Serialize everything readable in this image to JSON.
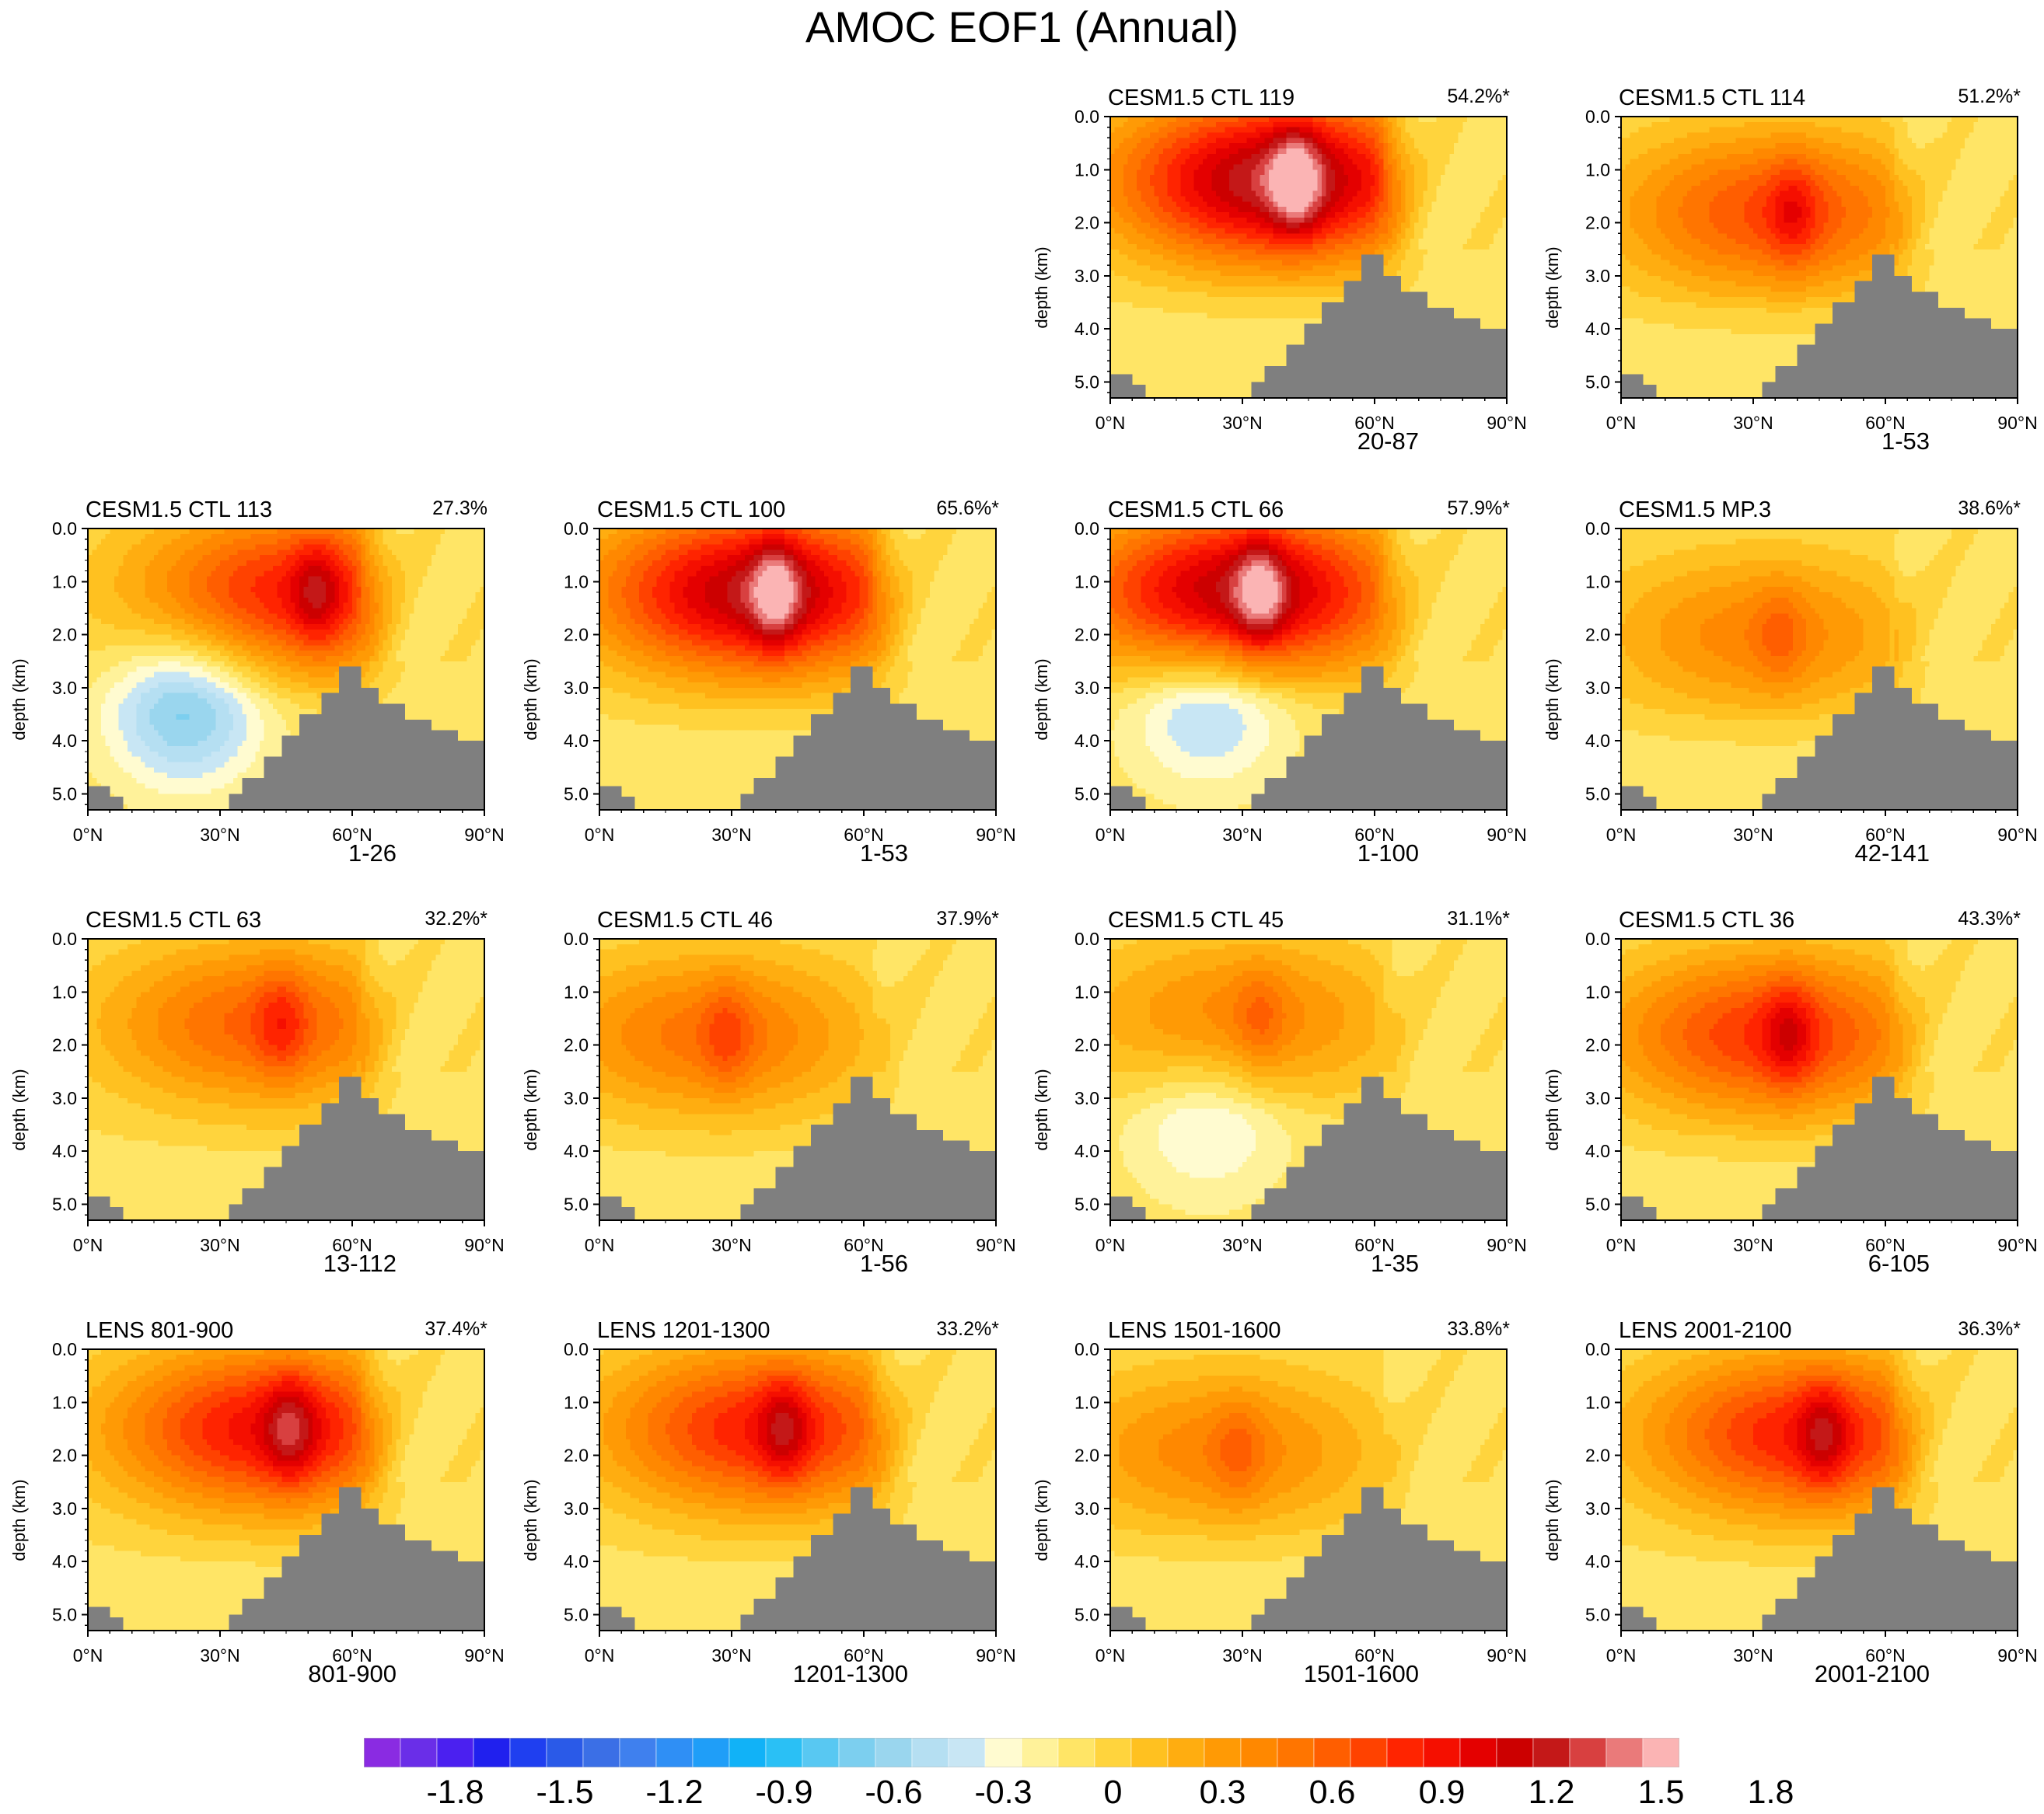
{
  "title": "AMOC EOF1 (Annual)",
  "chart_data": {
    "type": "contour",
    "shared_axes": {
      "ylabel": "depth (km)",
      "ylim": [
        0.0,
        5.3
      ],
      "yticks": [
        "0.0",
        "1.0",
        "2.0",
        "3.0",
        "4.0",
        "5.0"
      ],
      "xlim": [
        0,
        90
      ],
      "xticks": [
        "0°N",
        "30°N",
        "60°N",
        "90°N"
      ]
    },
    "panels": [
      {
        "title": "CESM1.5 CTL 119",
        "variance": "54.2%*",
        "years": "20-87",
        "peak": 1.6,
        "core_lat": 38,
        "core_depth": 1.2,
        "overturn_depth": 3.2,
        "negative_lobe": 0
      },
      {
        "title": "CESM1.5 CTL 114",
        "variance": "51.2%*",
        "years": "1-53",
        "peak": 0.9,
        "core_lat": 35,
        "core_depth": 1.8,
        "overturn_depth": 3.4,
        "negative_lobe": 0
      },
      {
        "title": "CESM1.5 CTL 113",
        "variance": "27.3%",
        "years": "1-26",
        "peak": 1.1,
        "core_lat": 48,
        "core_depth": 1.2,
        "overturn_depth": 3.0,
        "negative_lobe": -0.6
      },
      {
        "title": "CESM1.5 CTL 100",
        "variance": "65.6%*",
        "years": "1-53",
        "peak": 1.5,
        "core_lat": 36,
        "core_depth": 1.2,
        "overturn_depth": 3.3,
        "negative_lobe": 0
      },
      {
        "title": "CESM1.5 CTL 66",
        "variance": "57.9%*",
        "years": "1-100",
        "peak": 1.5,
        "core_lat": 30,
        "core_depth": 1.2,
        "overturn_depth": 2.9,
        "negative_lobe": -0.4
      },
      {
        "title": "CESM1.5 MP.3",
        "variance": "38.6%*",
        "years": "42-141",
        "peak": 0.6,
        "core_lat": 32,
        "core_depth": 2.0,
        "overturn_depth": 3.4,
        "negative_lobe": 0
      },
      {
        "title": "CESM1.5 CTL 63",
        "variance": "32.2%*",
        "years": "13-112",
        "peak": 0.8,
        "core_lat": 40,
        "core_depth": 1.6,
        "overturn_depth": 3.6,
        "negative_lobe": 0
      },
      {
        "title": "CESM1.5 CTL 46",
        "variance": "37.9%*",
        "years": "1-56",
        "peak": 0.7,
        "core_lat": 25,
        "core_depth": 1.8,
        "overturn_depth": 3.6,
        "negative_lobe": 0
      },
      {
        "title": "CESM1.5 CTL 45",
        "variance": "31.1%*",
        "years": "1-35",
        "peak": 0.6,
        "core_lat": 30,
        "core_depth": 1.5,
        "overturn_depth": 3.0,
        "negative_lobe": -0.3
      },
      {
        "title": "CESM1.5 CTL 36",
        "variance": "43.3%*",
        "years": "6-105",
        "peak": 1.0,
        "core_lat": 34,
        "core_depth": 1.8,
        "overturn_depth": 3.6,
        "negative_lobe": 0
      },
      {
        "title": "LENS 801-900",
        "variance": "37.4%*",
        "years": "801-900",
        "peak": 1.2,
        "core_lat": 42,
        "core_depth": 1.5,
        "overturn_depth": 3.6,
        "negative_lobe": 0
      },
      {
        "title": "LENS 1201-1300",
        "variance": "33.2%*",
        "years": "1201-1300",
        "peak": 1.1,
        "core_lat": 38,
        "core_depth": 1.5,
        "overturn_depth": 3.6,
        "negative_lobe": 0
      },
      {
        "title": "LENS 1501-1600",
        "variance": "33.8%*",
        "years": "1501-1600",
        "peak": 0.6,
        "core_lat": 25,
        "core_depth": 1.9,
        "overturn_depth": 3.4,
        "negative_lobe": 0
      },
      {
        "title": "LENS 2001-2100",
        "variance": "36.3%*",
        "years": "2001-2100",
        "peak": 1.1,
        "core_lat": 42,
        "core_depth": 1.6,
        "overturn_depth": 3.6,
        "negative_lobe": 0
      }
    ],
    "colorbar": {
      "levels_min": -2.0,
      "levels_step": 0.1,
      "tick_labels": [
        "-1.8",
        "-1.5",
        "-1.2",
        "-0.9",
        "-0.6",
        "-0.3",
        "0",
        "0.3",
        "0.6",
        "0.9",
        "1.2",
        "1.5",
        "1.8"
      ],
      "tick_values": [
        -1.8,
        -1.5,
        -1.2,
        -0.9,
        -0.6,
        -0.3,
        0,
        0.3,
        0.6,
        0.9,
        1.2,
        1.5,
        1.8
      ],
      "colors": [
        "#8a2be2",
        "#6a2ee8",
        "#4b20f0",
        "#2020ee",
        "#1f3ff0",
        "#2a5ae8",
        "#3b6fe6",
        "#3f80ee",
        "#2f8ff5",
        "#1f9ef8",
        "#11b2f7",
        "#2ac0f5",
        "#58c8f2",
        "#7ccfef",
        "#9ad6ee",
        "#b5dff2",
        "#c8e6f4",
        "#fffbd0",
        "#fff29a",
        "#ffe566",
        "#ffd43d",
        "#ffc120",
        "#ffad10",
        "#ff9a05",
        "#ff8800",
        "#ff7500",
        "#ff5e00",
        "#ff4200",
        "#ff2400",
        "#f50f00",
        "#e40000",
        "#cc0000",
        "#c41818",
        "#d84040",
        "#ea7a7a",
        "#fbb4b4"
      ]
    }
  }
}
